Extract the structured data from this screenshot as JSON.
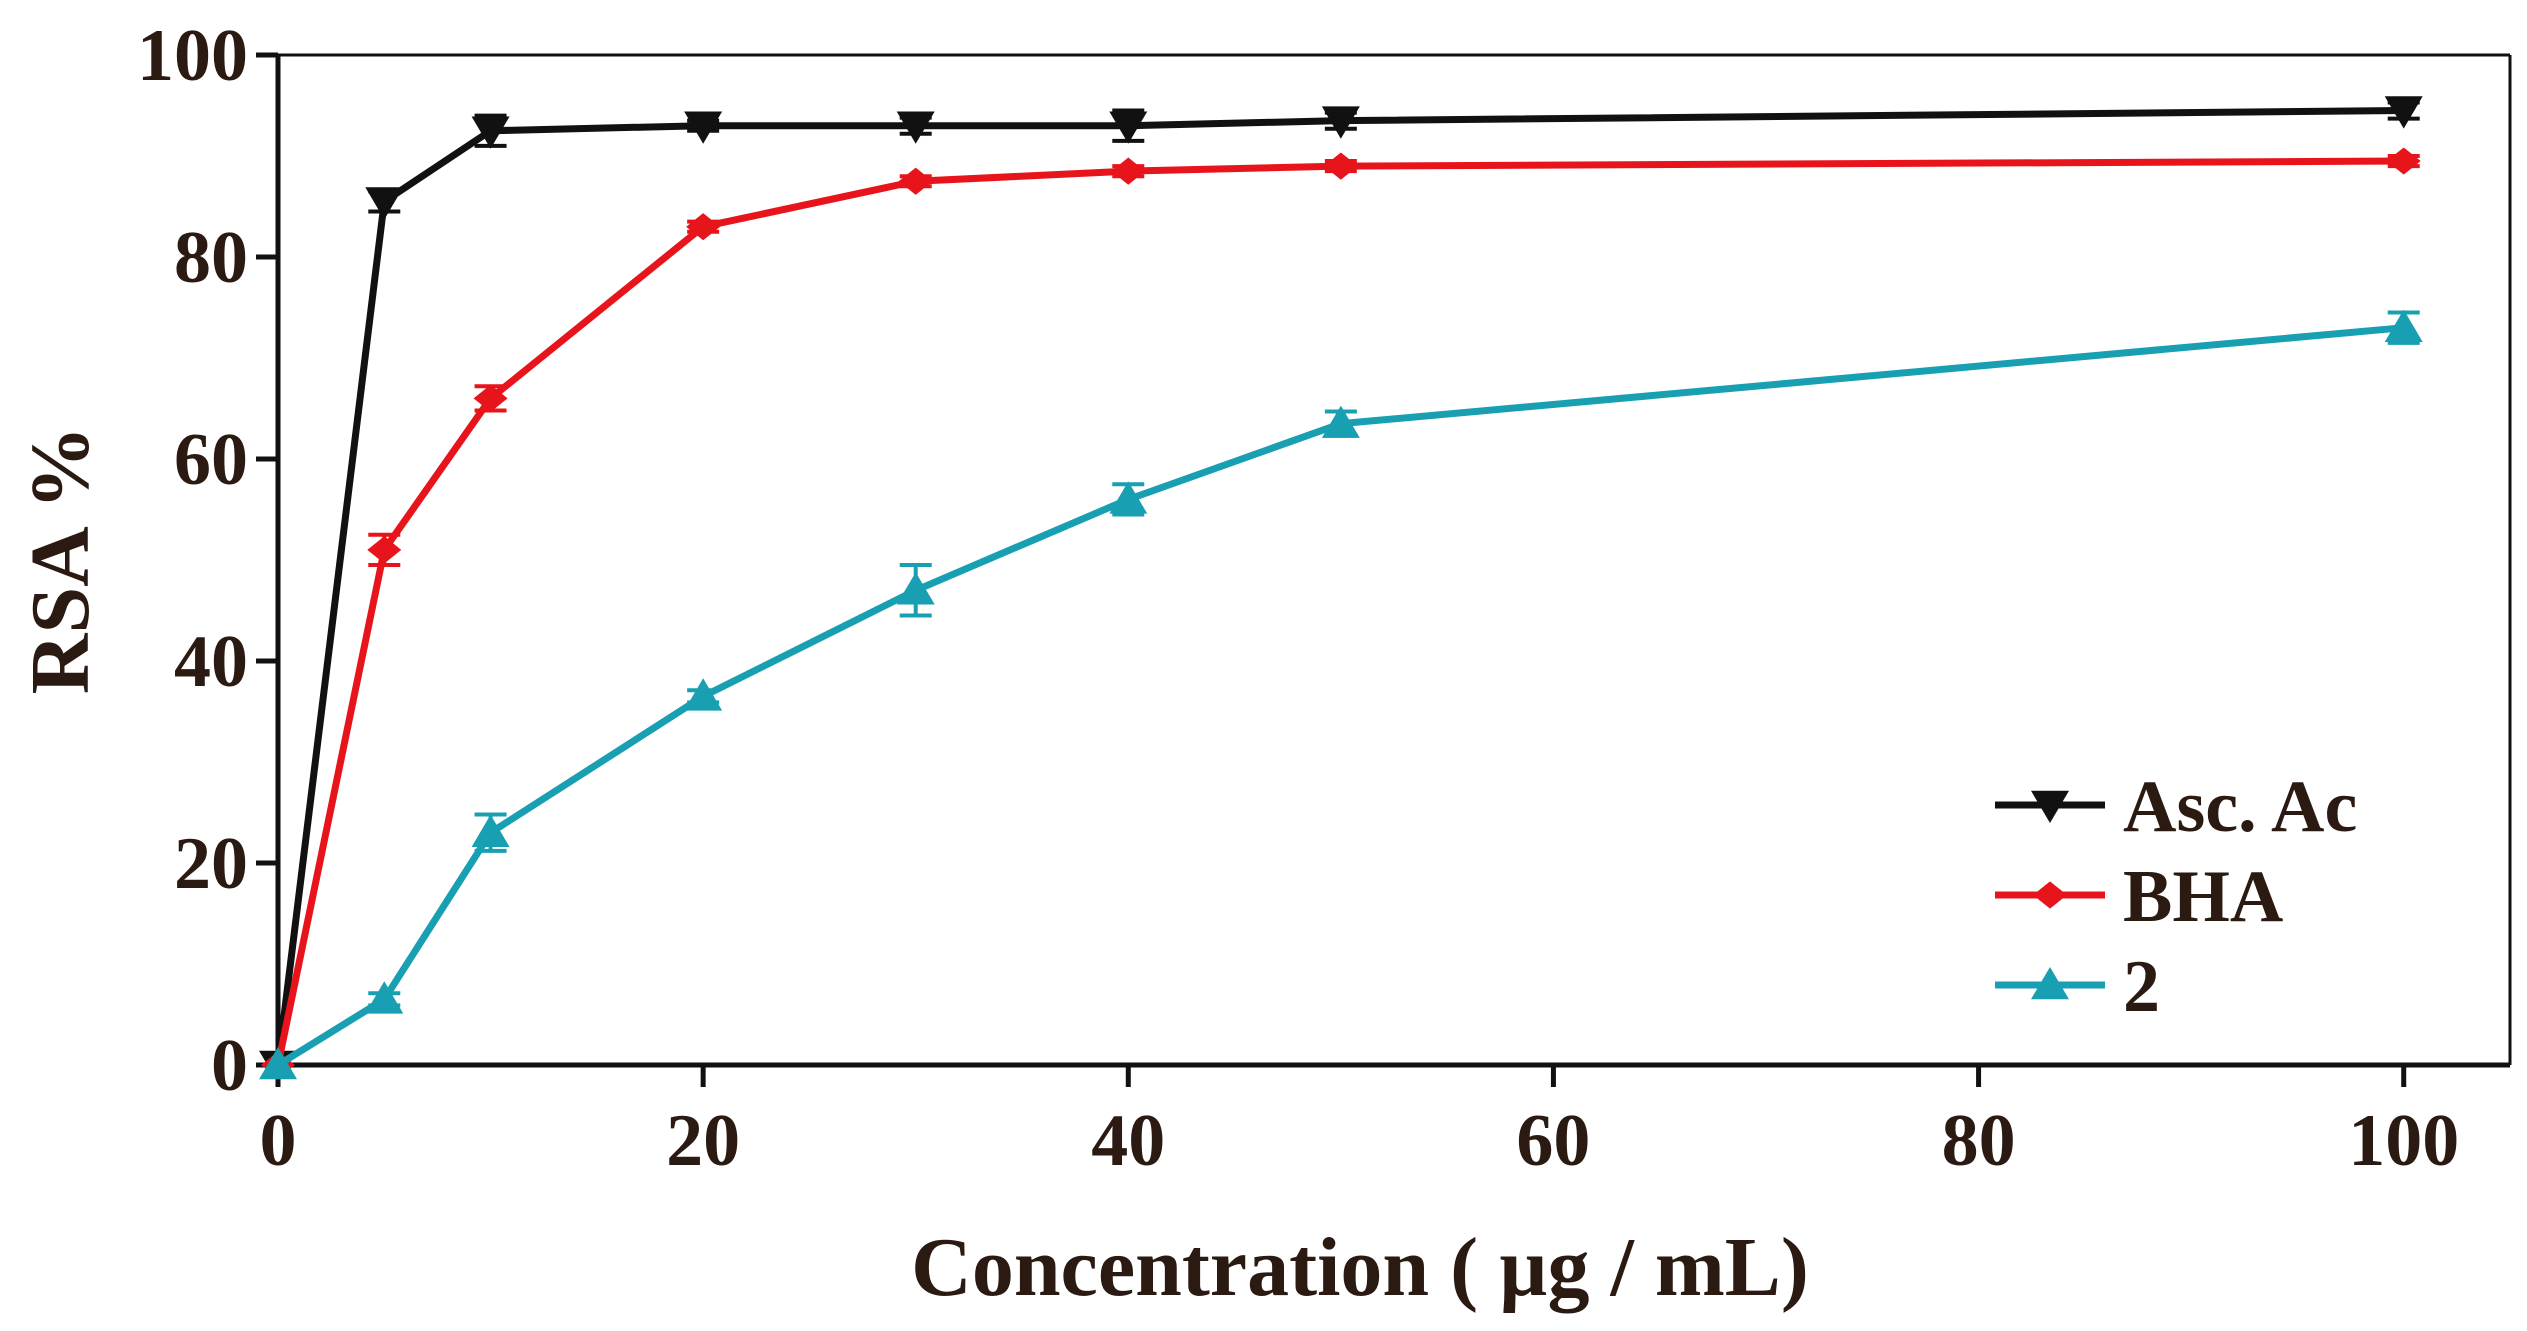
{
  "chart_data": {
    "type": "line",
    "title": "",
    "xlabel": "Concentration ( µg / mL)",
    "ylabel": "RSA %",
    "xlim": [
      0,
      105
    ],
    "ylim": [
      0,
      100
    ],
    "xticks": [
      0,
      20,
      40,
      60,
      80,
      100
    ],
    "yticks": [
      0,
      20,
      40,
      60,
      80,
      100
    ],
    "grid": false,
    "legend_position": "bottom-right",
    "x": [
      0,
      5,
      10,
      20,
      30,
      40,
      50,
      100
    ],
    "series": [
      {
        "name": "Asc. Ac",
        "color": "#111111",
        "marker": "triangle-down",
        "values": [
          0,
          85.5,
          92.5,
          93,
          93,
          93,
          93.5,
          94.5
        ],
        "errors": [
          0,
          1,
          1.5,
          0.5,
          0.8,
          1.5,
          0.8,
          0.8
        ]
      },
      {
        "name": "BHA",
        "color": "#e8141b",
        "marker": "diamond",
        "values": [
          0,
          51,
          66,
          83,
          87.5,
          88.5,
          89,
          89.5
        ],
        "errors": [
          0,
          1.5,
          1.2,
          0.5,
          0.5,
          0.5,
          0.5,
          0.5
        ]
      },
      {
        "name": "2",
        "color": "#18a0b2",
        "marker": "triangle-up",
        "values": [
          0,
          6.5,
          23,
          36.5,
          47,
          56,
          63.5,
          73
        ],
        "errors": [
          0,
          0.6,
          1.8,
          0.6,
          2.5,
          1.5,
          1.2,
          1.5
        ]
      }
    ]
  }
}
